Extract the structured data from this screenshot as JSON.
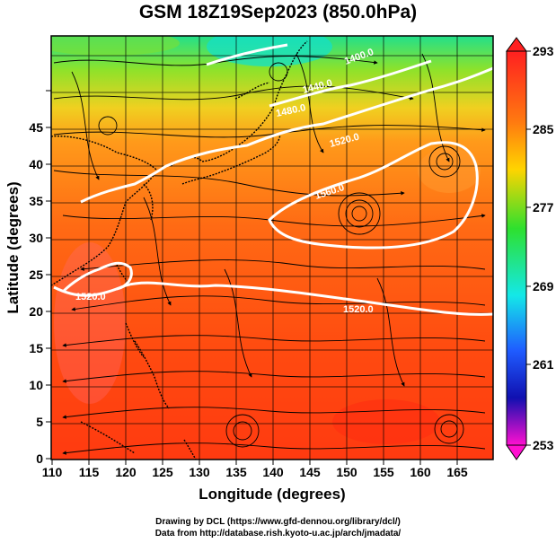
{
  "title": "GSM 18Z19Sep2023 (850.0hPa)",
  "axes": {
    "xlabel": "Longitude (degrees)",
    "ylabel": "Latitude  (degrees)",
    "x_ticks": [
      "110",
      "115",
      "120",
      "125",
      "130",
      "135",
      "140",
      "145",
      "150",
      "155",
      "160",
      "165"
    ],
    "y_ticks": [
      "0",
      "5",
      "10",
      "15",
      "20",
      "25",
      "30",
      "35",
      "40",
      "45"
    ]
  },
  "colorbar": {
    "labels": [
      "293",
      "285",
      "277",
      "269",
      "261",
      "253"
    ],
    "colors": [
      "#ff2020",
      "#ff7a10",
      "#ffd400",
      "#2ee02e",
      "#14e8e8",
      "#1f5cff",
      "#1010b0",
      "#ff10d0"
    ]
  },
  "contours": [
    {
      "label": "1520.0"
    },
    {
      "label": "1520.0"
    },
    {
      "label": "1560.0"
    },
    {
      "label": "1520.0"
    },
    {
      "label": "1480.0"
    },
    {
      "label": "1440.0"
    },
    {
      "label": "1400.0"
    }
  ],
  "credits": {
    "line1": "Drawing by DCL (https://www.gfd-dennou.org/library/dcl/)",
    "line2": "Data from http://database.rish.kyoto-u.ac.jp/arch/jmadata/"
  }
}
